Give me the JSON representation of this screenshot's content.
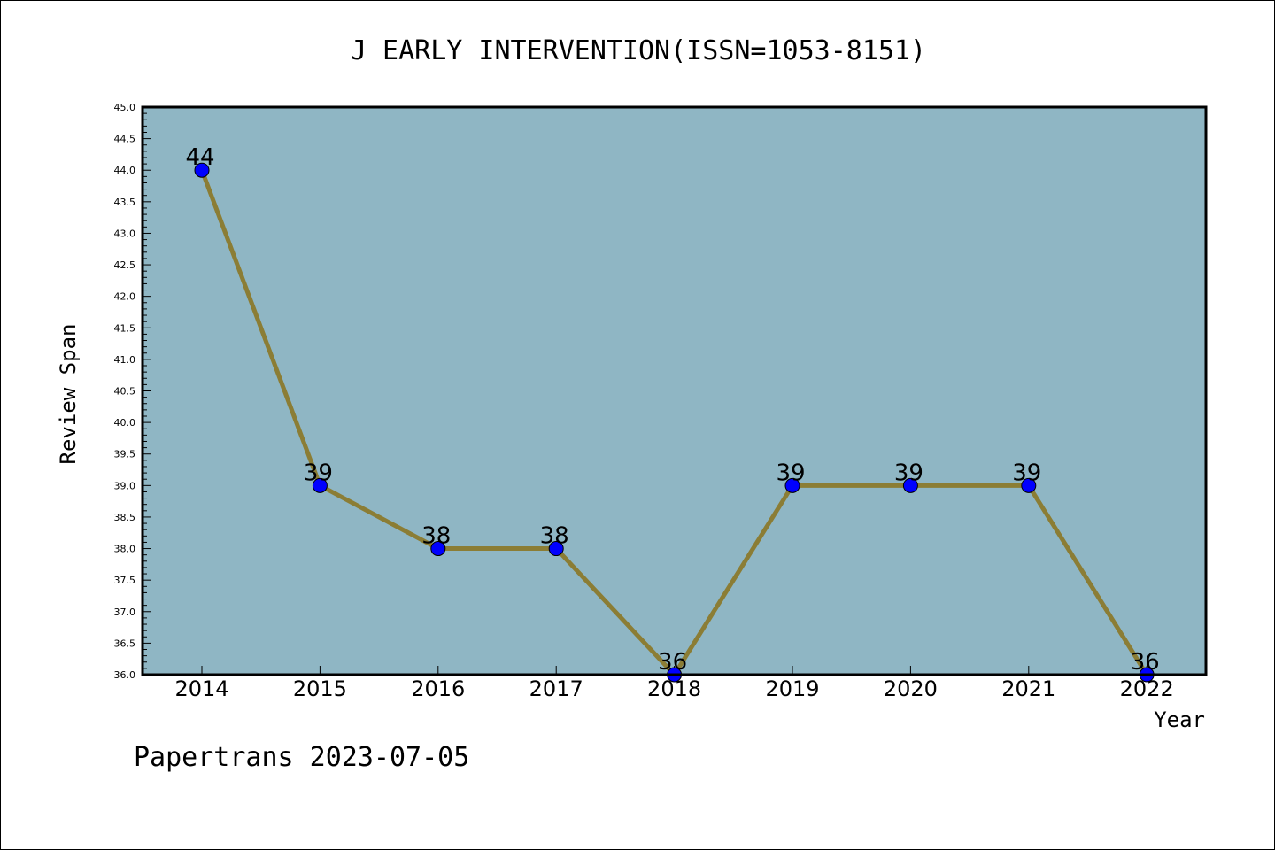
{
  "chart_data": {
    "type": "line",
    "title": "J EARLY INTERVENTION(ISSN=1053-8151)",
    "xlabel": "Year",
    "ylabel": "Review Span",
    "categories": [
      "2014",
      "2015",
      "2016",
      "2017",
      "2018",
      "2019",
      "2020",
      "2021",
      "2022"
    ],
    "series": [
      {
        "values": [
          44,
          39,
          38,
          38,
          36,
          39,
          39,
          39,
          36
        ]
      }
    ],
    "data_labels": [
      "44",
      "39",
      "38",
      "38",
      "36",
      "39",
      "39",
      "39",
      "36"
    ],
    "ylim": [
      36.0,
      45.0
    ],
    "yticks": [
      "36.0",
      "36.5",
      "37.0",
      "37.5",
      "38.0",
      "38.5",
      "39.0",
      "39.5",
      "40.0",
      "40.5",
      "41.0",
      "41.5",
      "42.0",
      "42.5",
      "43.0",
      "43.5",
      "44.0",
      "44.5",
      "45.0"
    ],
    "grid": false,
    "colors": {
      "plot_background": "#8fb6c4",
      "line": "#8b7d35",
      "marker": "#0000ff"
    }
  },
  "footer": "Papertrans 2023-07-05"
}
